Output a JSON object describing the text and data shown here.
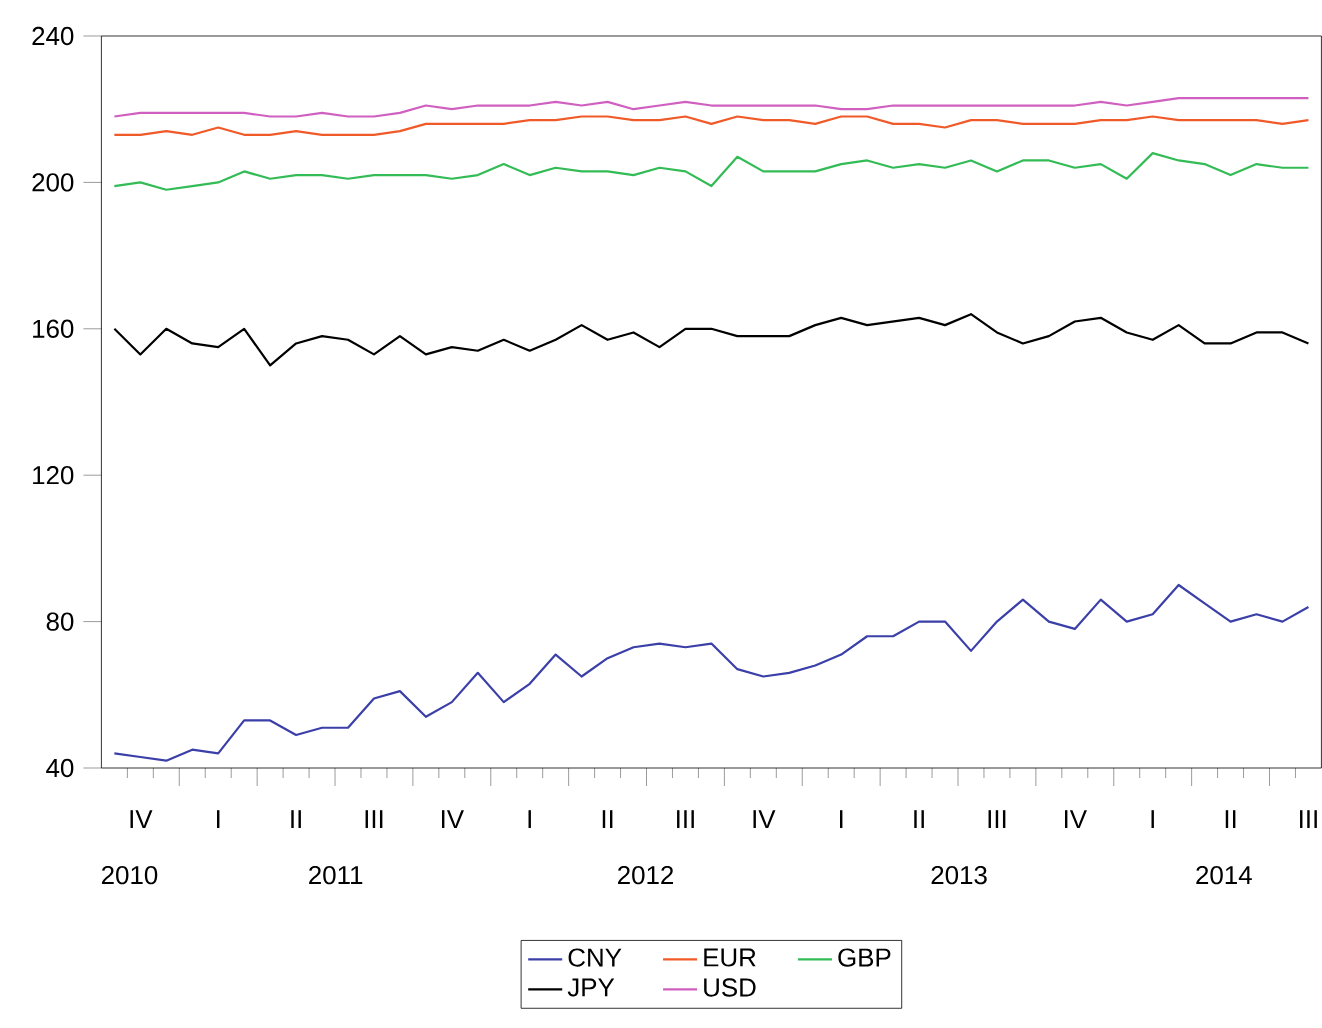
{
  "chart_data": {
    "type": "line",
    "marker": "none",
    "line_style": "solid",
    "legend": "bottom",
    "categories": [
      null,
      "IV",
      null,
      null,
      "I",
      null,
      null,
      "II",
      null,
      null,
      "III",
      null,
      null,
      "IV",
      null,
      null,
      "I",
      null,
      null,
      "II",
      null,
      null,
      "III",
      null,
      null,
      "IV",
      null,
      null,
      "I",
      null,
      null,
      "II",
      null,
      null,
      "III",
      null,
      null,
      "IV",
      null,
      null,
      "I",
      null,
      null,
      "II",
      null,
      null,
      "III"
    ],
    "series": [
      {
        "name": "CNY",
        "color": "#3b3fa8",
        "values": [
          44,
          43,
          42,
          45,
          44,
          53,
          53,
          49,
          51,
          51,
          59,
          61,
          54,
          58,
          66,
          58,
          63,
          71,
          65,
          70,
          73,
          74,
          73,
          74,
          67,
          65,
          66,
          68,
          71,
          76,
          76,
          80,
          80,
          72,
          80,
          86,
          80,
          78,
          86,
          80,
          82,
          90,
          85,
          80,
          82,
          80,
          84
        ]
      },
      {
        "name": "EUR",
        "color": "#f05a28",
        "values": [
          213,
          213,
          214,
          213,
          215,
          213,
          213,
          214,
          213,
          213,
          213,
          214,
          216,
          216,
          216,
          216,
          217,
          217,
          218,
          218,
          217,
          217,
          218,
          216,
          218,
          217,
          217,
          216,
          218,
          218,
          216,
          216,
          215,
          217,
          217,
          216,
          216,
          216,
          217,
          217,
          218,
          217,
          217,
          217,
          217,
          216,
          217
        ]
      },
      {
        "name": "GBP",
        "color": "#33bb55",
        "values": [
          199,
          200,
          198,
          199,
          200,
          203,
          201,
          202,
          202,
          201,
          202,
          202,
          202,
          201,
          202,
          205,
          202,
          204,
          203,
          203,
          202,
          204,
          203,
          199,
          207,
          203,
          203,
          203,
          205,
          206,
          204,
          205,
          204,
          206,
          203,
          206,
          206,
          204,
          205,
          201,
          208,
          206,
          205,
          202,
          205,
          204,
          204
        ]
      },
      {
        "name": "JPY",
        "color": "#000000",
        "values": [
          160,
          153,
          160,
          156,
          155,
          160,
          150,
          156,
          158,
          157,
          153,
          158,
          153,
          155,
          154,
          157,
          154,
          157,
          161,
          157,
          159,
          155,
          160,
          160,
          158,
          158,
          158,
          161,
          163,
          161,
          162,
          163,
          161,
          164,
          159,
          156,
          158,
          162,
          163,
          159,
          157,
          161,
          156,
          156,
          159,
          159,
          156
        ]
      },
      {
        "name": "USD",
        "color": "#d060c0",
        "values": [
          218,
          219,
          219,
          219,
          219,
          219,
          218,
          218,
          219,
          218,
          218,
          219,
          221,
          220,
          221,
          221,
          221,
          222,
          221,
          222,
          220,
          221,
          222,
          221,
          221,
          221,
          221,
          221,
          220,
          220,
          221,
          221,
          221,
          221,
          221,
          221,
          221,
          221,
          222,
          221,
          222,
          223,
          223,
          223,
          223,
          223,
          223
        ]
      }
    ],
    "annotations": [
      "2010",
      "2011",
      "2012",
      "2013",
      "2014"
    ],
    "ylim": [
      40,
      240
    ],
    "yticks": [
      40,
      80,
      120,
      160,
      200,
      240
    ]
  }
}
